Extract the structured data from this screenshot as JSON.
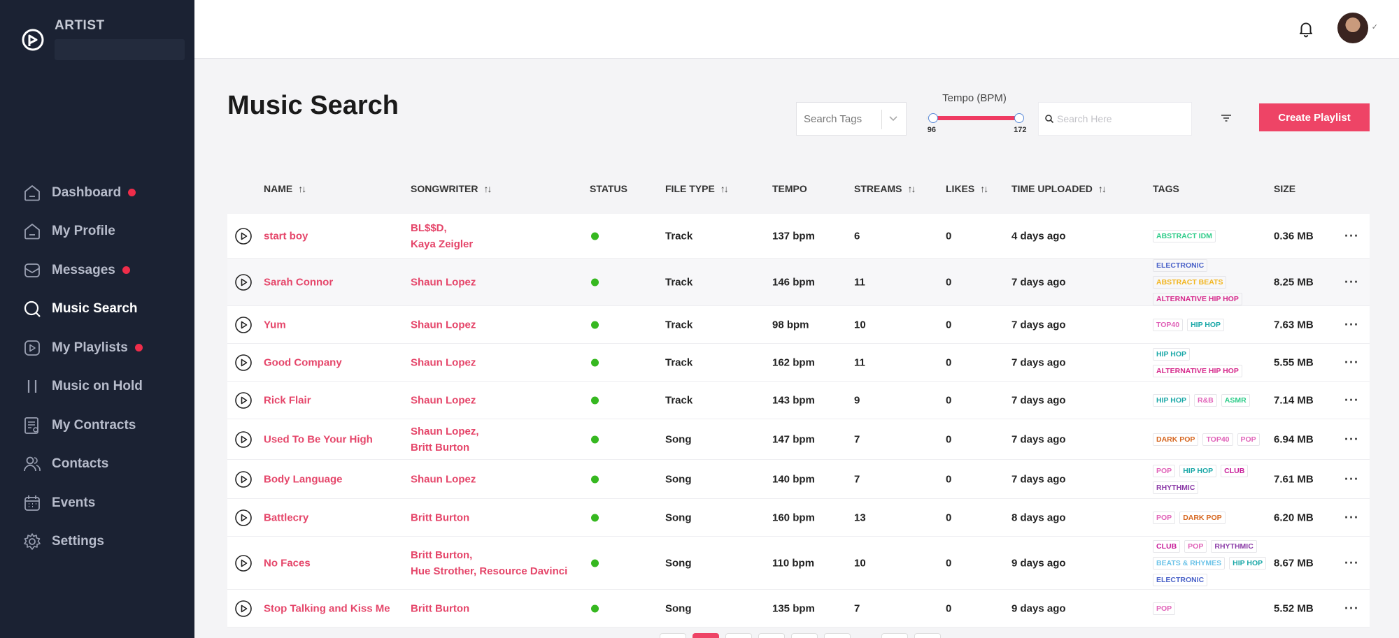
{
  "sidebar": {
    "brand_role": "ARTIST",
    "items": [
      {
        "label": "Dashboard",
        "icon": "home-icon",
        "badge": true
      },
      {
        "label": "My Profile",
        "icon": "home-icon",
        "badge": false
      },
      {
        "label": "Messages",
        "icon": "envelope-icon",
        "badge": true
      },
      {
        "label": "Music Search",
        "icon": "search-icon",
        "badge": false,
        "active": true
      },
      {
        "label": "My Playlists",
        "icon": "play-square-icon",
        "badge": true
      },
      {
        "label": "Music on Hold",
        "icon": "pause-icon",
        "badge": false
      },
      {
        "label": "My Contracts",
        "icon": "contract-icon",
        "badge": false
      },
      {
        "label": "Contacts",
        "icon": "users-icon",
        "badge": false
      },
      {
        "label": "Events",
        "icon": "calendar-icon",
        "badge": false
      },
      {
        "label": "Settings",
        "icon": "gear-icon",
        "badge": false
      }
    ]
  },
  "header": {
    "title": "Music Search",
    "tags_placeholder": "Search Tags",
    "tempo": {
      "label": "Tempo (BPM)",
      "min": 96,
      "max": 172,
      "range_min": 90,
      "range_max": 175
    },
    "search_placeholder": "Search Here",
    "create_label": "Create Playlist"
  },
  "columns": [
    "NAME",
    "SONGWRITER",
    "STATUS",
    "FILE TYPE",
    "TEMPO",
    "STREAMS",
    "LIKES",
    "TIME UPLOADED",
    "TAGS",
    "SIZE"
  ],
  "colors": {
    "accent": "#ee4466",
    "status_active": "#36b820",
    "sidebar_bg": "#1b2233"
  },
  "rows": [
    {
      "name": "start boy",
      "writers": [
        [
          "BL$$D",
          "Kaya Zeigler"
        ]
      ],
      "writer_lines": [
        "BL$$D,",
        "Kaya Zeigler"
      ],
      "type": "Track",
      "tempo": "137 bpm",
      "streams": "6",
      "likes": "0",
      "time": "4 days ago",
      "tags": [
        {
          "t": "ABSTRACT IDM",
          "c": "#2fcc8a"
        }
      ],
      "size": "0.36 MB"
    },
    {
      "name": "Sarah Connor",
      "writer_lines": [
        "Shaun Lopez"
      ],
      "type": "Track",
      "tempo": "146 bpm",
      "streams": "11",
      "likes": "0",
      "time": "7 days ago",
      "tags": [
        {
          "t": "ELECTRONIC",
          "c": "#4a62c8"
        },
        {
          "t": "ABSTRACT BEATS",
          "c": "#f2b41c"
        },
        {
          "t": "ALTERNATIVE HIP HOP",
          "c": "#d62a8c"
        }
      ],
      "size": "8.25 MB",
      "hover": true
    },
    {
      "name": "Yum",
      "writer_lines": [
        "Shaun Lopez"
      ],
      "type": "Track",
      "tempo": "98 bpm",
      "streams": "10",
      "likes": "0",
      "time": "7 days ago",
      "tags": [
        {
          "t": "TOP40",
          "c": "#e062b8"
        },
        {
          "t": "HIP HOP",
          "c": "#1ba8a8"
        }
      ],
      "size": "7.63 MB"
    },
    {
      "name": "Good Company",
      "writer_lines": [
        "Shaun Lopez"
      ],
      "type": "Track",
      "tempo": "162 bpm",
      "streams": "11",
      "likes": "0",
      "time": "7 days ago",
      "tags": [
        {
          "t": "HIP HOP",
          "c": "#1ba8a8"
        },
        {
          "t": "ALTERNATIVE HIP HOP",
          "c": "#d62a8c"
        }
      ],
      "size": "5.55 MB"
    },
    {
      "name": "Rick Flair",
      "writer_lines": [
        "Shaun Lopez"
      ],
      "type": "Track",
      "tempo": "143 bpm",
      "streams": "9",
      "likes": "0",
      "time": "7 days ago",
      "tags": [
        {
          "t": "HIP HOP",
          "c": "#1ba8a8"
        },
        {
          "t": "R&B",
          "c": "#e062b8"
        },
        {
          "t": "ASMR",
          "c": "#2fcc8a"
        }
      ],
      "size": "7.14 MB"
    },
    {
      "name": "Used To Be Your High",
      "writer_lines": [
        "Shaun Lopez,",
        "Britt Burton"
      ],
      "type": "Song",
      "tempo": "147 bpm",
      "streams": "7",
      "likes": "0",
      "time": "7 days ago",
      "tags": [
        {
          "t": "DARK POP",
          "c": "#d6651e"
        },
        {
          "t": "TOP40",
          "c": "#e062b8"
        },
        {
          "t": "POP",
          "c": "#e062b8"
        }
      ],
      "size": "6.94 MB"
    },
    {
      "name": "Body Language",
      "writer_lines": [
        "Shaun Lopez"
      ],
      "type": "Song",
      "tempo": "140 bpm",
      "streams": "7",
      "likes": "0",
      "time": "7 days ago",
      "tags": [
        {
          "t": "POP",
          "c": "#e062b8"
        },
        {
          "t": "HIP HOP",
          "c": "#1ba8a8"
        },
        {
          "t": "CLUB",
          "c": "#c81e9a"
        },
        {
          "t": "RHYTHMIC",
          "c": "#8c3ca8"
        }
      ],
      "size": "7.61 MB"
    },
    {
      "name": "Battlecry",
      "writer_lines": [
        "Britt Burton"
      ],
      "type": "Song",
      "tempo": "160 bpm",
      "streams": "13",
      "likes": "0",
      "time": "8 days ago",
      "tags": [
        {
          "t": "POP",
          "c": "#e062b8"
        },
        {
          "t": "DARK POP",
          "c": "#d6651e"
        }
      ],
      "size": "6.20 MB"
    },
    {
      "name": "No Faces",
      "writer_lines": [
        "Britt Burton,",
        "Hue Strother, Resource Davinci"
      ],
      "type": "Song",
      "tempo": "110 bpm",
      "streams": "10",
      "likes": "0",
      "time": "9 days ago",
      "tags": [
        {
          "t": "CLUB",
          "c": "#c81e9a"
        },
        {
          "t": "POP",
          "c": "#e062b8"
        },
        {
          "t": "RHYTHMIC",
          "c": "#8c3ca8"
        },
        {
          "t": "BEATS & RHYMES",
          "c": "#6cc3e8"
        },
        {
          "t": "HIP HOP",
          "c": "#1ba8a8"
        },
        {
          "t": "ELECTRONIC",
          "c": "#4a62c8"
        }
      ],
      "size": "8.67 MB"
    },
    {
      "name": "Stop Talking and Kiss Me",
      "writer_lines": [
        "Britt Burton"
      ],
      "type": "Song",
      "tempo": "135 bpm",
      "streams": "7",
      "likes": "0",
      "time": "9 days ago",
      "tags": [
        {
          "t": "POP",
          "c": "#e062b8"
        }
      ],
      "size": "5.52 MB"
    }
  ]
}
